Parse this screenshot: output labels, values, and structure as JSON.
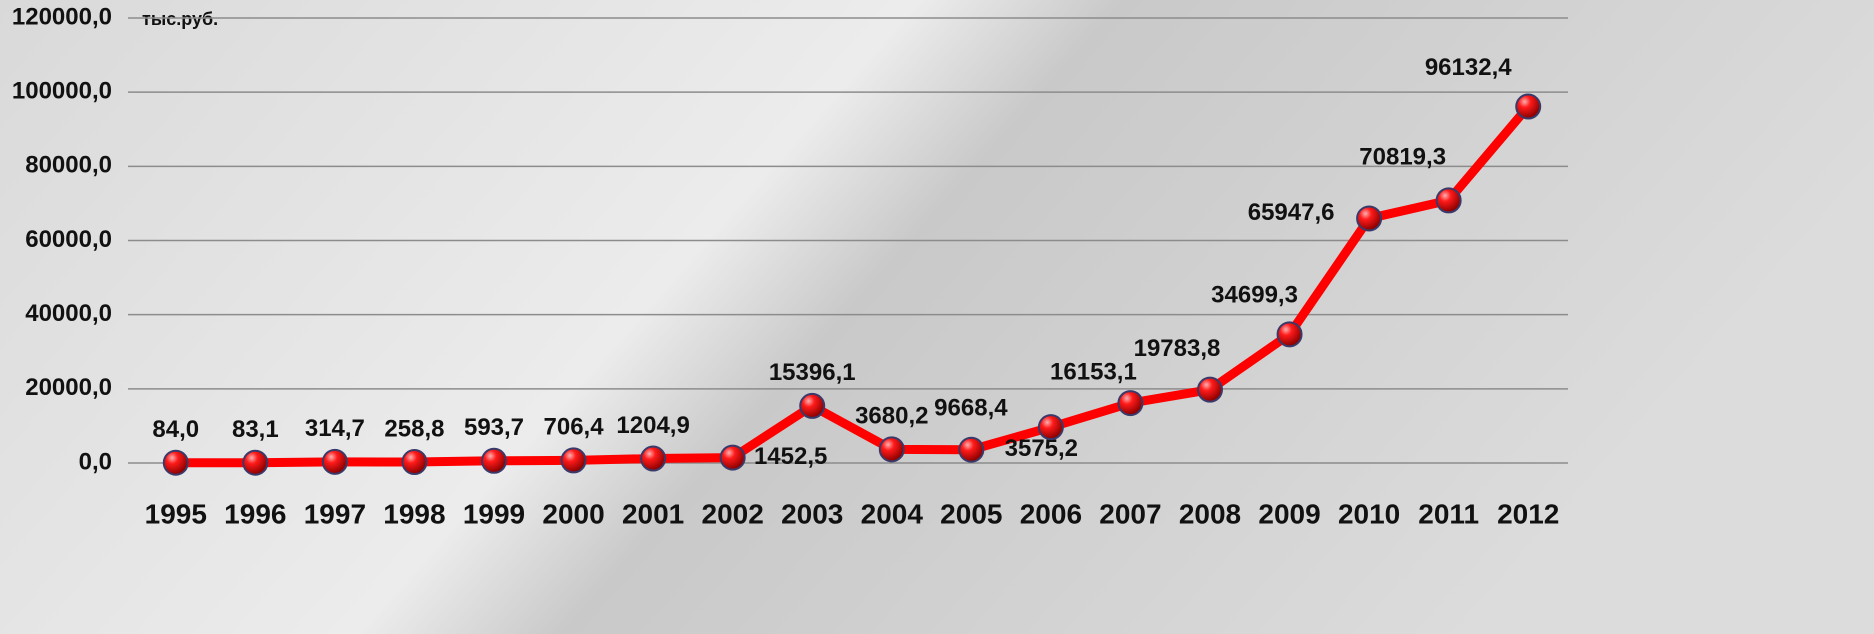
{
  "chart_data": {
    "type": "line",
    "unit_label": "тыс.руб.",
    "categories": [
      "1995",
      "1996",
      "1997",
      "1998",
      "1999",
      "2000",
      "2001",
      "2002",
      "2003",
      "2004",
      "2005",
      "2006",
      "2007",
      "2008",
      "2009",
      "2010",
      "2011",
      "2012"
    ],
    "series": [
      {
        "name": null,
        "color": "#ff0000",
        "values": [
          84.0,
          83.1,
          314.7,
          258.8,
          593.7,
          706.4,
          1204.9,
          1452.5,
          15396.1,
          3680.2,
          3575.2,
          9668.4,
          16153.1,
          19783.8,
          34699.3,
          65947.6,
          70819.3,
          96132.4
        ],
        "value_labels": [
          "84,0",
          "83,1",
          "314,7",
          "258,8",
          "593,7",
          "706,4",
          "1204,9",
          "1452,5",
          "15396,1",
          "3680,2",
          "3575,2",
          "9668,4",
          "16153,1",
          "19783,8",
          "34699,3",
          "65947,6",
          "70819,3",
          "96132,4"
        ]
      }
    ],
    "ylim": [
      0,
      120000
    ],
    "yticks": [
      {
        "value": 0,
        "label": "0,0"
      },
      {
        "value": 20000,
        "label": "20000,0"
      },
      {
        "value": 40000,
        "label": "40000,0"
      },
      {
        "value": 60000,
        "label": "60000,0"
      },
      {
        "value": 80000,
        "label": "80000,0"
      },
      {
        "value": 100000,
        "label": "100000,0"
      },
      {
        "value": 120000,
        "label": "120000,0"
      }
    ],
    "grid": true
  }
}
